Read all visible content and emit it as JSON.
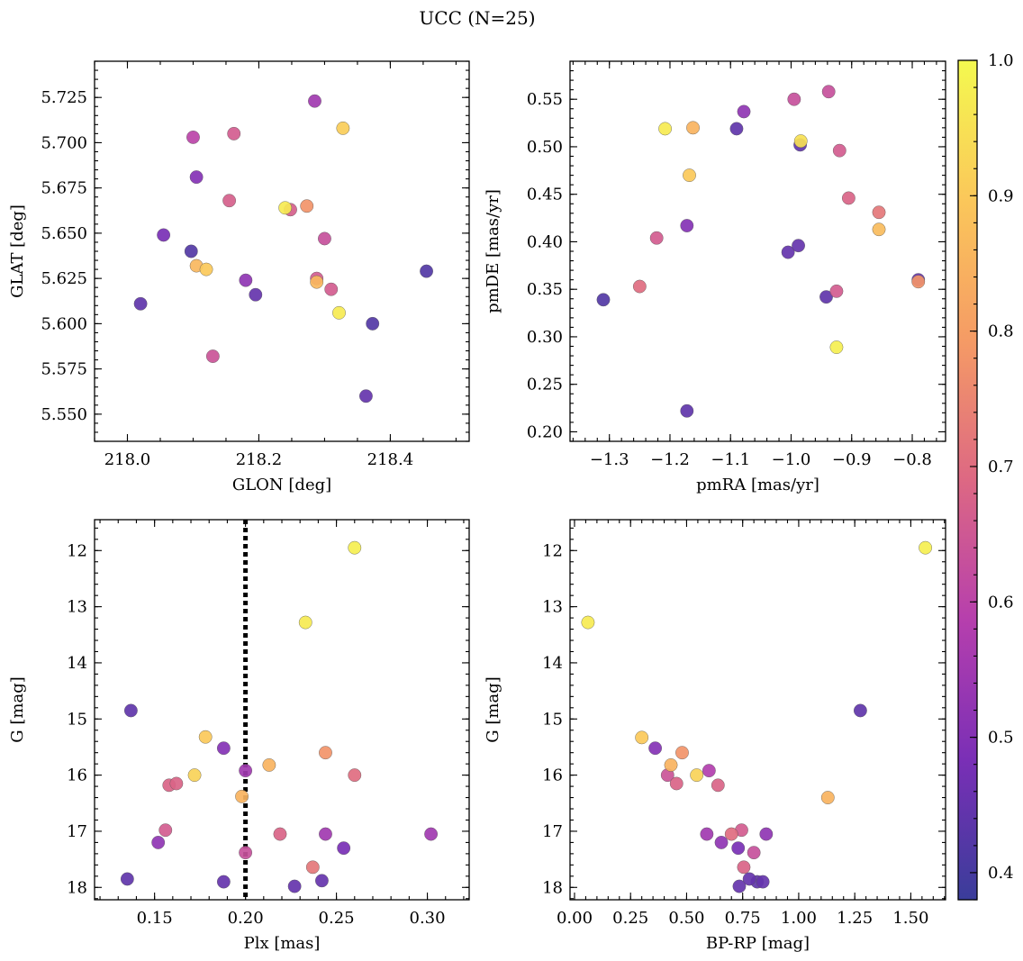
{
  "figure_title": "UCC (N=25)",
  "colorbar": {
    "min": 0.38,
    "max": 1.0,
    "ticks": [
      0.4,
      0.5,
      0.6,
      0.7,
      0.8,
      0.9,
      1.0
    ],
    "tick_labels": [
      "0.4",
      "0.5",
      "0.6",
      "0.7",
      "0.8",
      "0.9",
      "1.0"
    ],
    "colormap": "plasma",
    "colormap_stops": [
      "#3a3d9a",
      "#7a2fb6",
      "#b63fad",
      "#dd6883",
      "#f59b65",
      "#fbc75a",
      "#f4f94f"
    ]
  },
  "chart_data": [
    {
      "type": "scatter",
      "xlabel": "GLON [deg]",
      "ylabel": "GLAT [deg]",
      "xlim": [
        217.95,
        218.52
      ],
      "ylim": [
        5.535,
        5.745
      ],
      "xticks": [
        218.0,
        218.2,
        218.4
      ],
      "xtick_labels": [
        "218.0",
        "218.2",
        "218.4"
      ],
      "yticks": [
        5.55,
        5.575,
        5.6,
        5.625,
        5.65,
        5.675,
        5.7,
        5.725
      ],
      "ytick_labels": [
        "5.550",
        "5.575",
        "5.600",
        "5.625",
        "5.650",
        "5.675",
        "5.700",
        "5.725"
      ],
      "x_minor_step": 0.05,
      "y_minor_step": 0.005,
      "points": [
        {
          "x": 218.02,
          "y": 5.611,
          "c": 0.44
        },
        {
          "x": 218.055,
          "y": 5.649,
          "c": 0.48
        },
        {
          "x": 218.097,
          "y": 5.64,
          "c": 0.42
        },
        {
          "x": 218.1,
          "y": 5.703,
          "c": 0.6
        },
        {
          "x": 218.105,
          "y": 5.681,
          "c": 0.5
        },
        {
          "x": 218.105,
          "y": 5.632,
          "c": 0.86
        },
        {
          "x": 218.12,
          "y": 5.63,
          "c": 0.9
        },
        {
          "x": 218.13,
          "y": 5.582,
          "c": 0.64
        },
        {
          "x": 218.155,
          "y": 5.668,
          "c": 0.67
        },
        {
          "x": 218.162,
          "y": 5.705,
          "c": 0.66
        },
        {
          "x": 218.18,
          "y": 5.624,
          "c": 0.52
        },
        {
          "x": 218.195,
          "y": 5.616,
          "c": 0.45
        },
        {
          "x": 218.24,
          "y": 5.664,
          "c": 0.97
        },
        {
          "x": 218.248,
          "y": 5.663,
          "c": 0.67
        },
        {
          "x": 218.273,
          "y": 5.665,
          "c": 0.78
        },
        {
          "x": 218.285,
          "y": 5.723,
          "c": 0.55
        },
        {
          "x": 218.288,
          "y": 5.625,
          "c": 0.66
        },
        {
          "x": 218.288,
          "y": 5.623,
          "c": 0.86
        },
        {
          "x": 218.3,
          "y": 5.647,
          "c": 0.63
        },
        {
          "x": 218.31,
          "y": 5.619,
          "c": 0.66
        },
        {
          "x": 218.322,
          "y": 5.606,
          "c": 0.97
        },
        {
          "x": 218.328,
          "y": 5.708,
          "c": 0.91
        },
        {
          "x": 218.363,
          "y": 5.56,
          "c": 0.45
        },
        {
          "x": 218.373,
          "y": 5.6,
          "c": 0.42
        },
        {
          "x": 218.455,
          "y": 5.629,
          "c": 0.42
        }
      ]
    },
    {
      "type": "scatter",
      "xlabel": "pmRA [mas/yr]",
      "ylabel": "pmDE [mas/yr]",
      "xlim": [
        -1.365,
        -0.745
      ],
      "ylim": [
        0.19,
        0.59
      ],
      "xticks": [
        -1.3,
        -1.2,
        -1.1,
        -1.0,
        -0.9,
        -0.8
      ],
      "xtick_labels": [
        "−1.3",
        "−1.2",
        "−1.1",
        "−1.0",
        "−0.9",
        "−0.8"
      ],
      "yticks": [
        0.2,
        0.25,
        0.3,
        0.35,
        0.4,
        0.45,
        0.5,
        0.55
      ],
      "ytick_labels": [
        "0.20",
        "0.25",
        "0.30",
        "0.35",
        "0.40",
        "0.45",
        "0.50",
        "0.55"
      ],
      "x_minor_step": 0.02,
      "y_minor_step": 0.01,
      "points": [
        {
          "x": -1.31,
          "y": 0.339,
          "c": 0.42
        },
        {
          "x": -1.25,
          "y": 0.353,
          "c": 0.7
        },
        {
          "x": -1.222,
          "y": 0.404,
          "c": 0.66
        },
        {
          "x": -1.208,
          "y": 0.519,
          "c": 0.97
        },
        {
          "x": -1.172,
          "y": 0.417,
          "c": 0.5
        },
        {
          "x": -1.172,
          "y": 0.222,
          "c": 0.44
        },
        {
          "x": -1.168,
          "y": 0.47,
          "c": 0.9
        },
        {
          "x": -1.162,
          "y": 0.52,
          "c": 0.85
        },
        {
          "x": -1.09,
          "y": 0.519,
          "c": 0.44
        },
        {
          "x": -1.078,
          "y": 0.537,
          "c": 0.52
        },
        {
          "x": -1.005,
          "y": 0.389,
          "c": 0.45
        },
        {
          "x": -0.995,
          "y": 0.55,
          "c": 0.63
        },
        {
          "x": -0.988,
          "y": 0.396,
          "c": 0.45
        },
        {
          "x": -0.985,
          "y": 0.502,
          "c": 0.44
        },
        {
          "x": -0.984,
          "y": 0.506,
          "c": 0.95
        },
        {
          "x": -0.942,
          "y": 0.342,
          "c": 0.44
        },
        {
          "x": -0.938,
          "y": 0.558,
          "c": 0.63
        },
        {
          "x": -0.925,
          "y": 0.348,
          "c": 0.66
        },
        {
          "x": -0.925,
          "y": 0.289,
          "c": 0.98
        },
        {
          "x": -0.92,
          "y": 0.496,
          "c": 0.66
        },
        {
          "x": -0.905,
          "y": 0.446,
          "c": 0.68
        },
        {
          "x": -0.855,
          "y": 0.431,
          "c": 0.72
        },
        {
          "x": -0.855,
          "y": 0.413,
          "c": 0.87
        },
        {
          "x": -0.79,
          "y": 0.36,
          "c": 0.45
        },
        {
          "x": -0.79,
          "y": 0.358,
          "c": 0.78
        }
      ]
    },
    {
      "type": "scatter",
      "xlabel": "Plx [mas]",
      "ylabel": "G [mag]",
      "xlim": [
        0.117,
        0.323
      ],
      "ylim": [
        18.22,
        11.45
      ],
      "y_inverted": true,
      "xticks": [
        0.15,
        0.2,
        0.25,
        0.3
      ],
      "xtick_labels": [
        "0.15",
        "0.20",
        "0.25",
        "0.30"
      ],
      "yticks": [
        12,
        13,
        14,
        15,
        16,
        17,
        18
      ],
      "ytick_labels": [
        "12",
        "13",
        "14",
        "15",
        "16",
        "17",
        "18"
      ],
      "x_minor_step": 0.01,
      "y_minor_step": 0.2,
      "vline": {
        "x": 0.2,
        "style": "dotted",
        "color": "#000000"
      },
      "points": [
        {
          "x": 0.135,
          "y": 17.85,
          "c": 0.44
        },
        {
          "x": 0.137,
          "y": 14.85,
          "c": 0.44
        },
        {
          "x": 0.152,
          "y": 17.2,
          "c": 0.52
        },
        {
          "x": 0.156,
          "y": 16.98,
          "c": 0.66
        },
        {
          "x": 0.158,
          "y": 16.18,
          "c": 0.68
        },
        {
          "x": 0.162,
          "y": 16.15,
          "c": 0.68
        },
        {
          "x": 0.172,
          "y": 16.0,
          "c": 0.92
        },
        {
          "x": 0.178,
          "y": 15.32,
          "c": 0.9
        },
        {
          "x": 0.188,
          "y": 15.52,
          "c": 0.5
        },
        {
          "x": 0.188,
          "y": 17.9,
          "c": 0.45
        },
        {
          "x": 0.198,
          "y": 16.38,
          "c": 0.85
        },
        {
          "x": 0.2,
          "y": 15.92,
          "c": 0.55
        },
        {
          "x": 0.2,
          "y": 17.38,
          "c": 0.63
        },
        {
          "x": 0.213,
          "y": 15.82,
          "c": 0.85
        },
        {
          "x": 0.219,
          "y": 17.05,
          "c": 0.68
        },
        {
          "x": 0.227,
          "y": 17.98,
          "c": 0.45
        },
        {
          "x": 0.233,
          "y": 13.28,
          "c": 0.97
        },
        {
          "x": 0.237,
          "y": 17.64,
          "c": 0.72
        },
        {
          "x": 0.242,
          "y": 17.88,
          "c": 0.45
        },
        {
          "x": 0.244,
          "y": 15.6,
          "c": 0.78
        },
        {
          "x": 0.244,
          "y": 17.05,
          "c": 0.55
        },
        {
          "x": 0.254,
          "y": 17.3,
          "c": 0.48
        },
        {
          "x": 0.26,
          "y": 11.95,
          "c": 0.98
        },
        {
          "x": 0.26,
          "y": 16.0,
          "c": 0.7
        },
        {
          "x": 0.302,
          "y": 17.05,
          "c": 0.55
        }
      ]
    },
    {
      "type": "scatter",
      "xlabel": "BP-RP [mag]",
      "ylabel": "G [mag]",
      "xlim": [
        -0.02,
        1.655
      ],
      "ylim": [
        18.22,
        11.45
      ],
      "y_inverted": true,
      "xticks": [
        0.0,
        0.25,
        0.5,
        0.75,
        1.0,
        1.25,
        1.5
      ],
      "xtick_labels": [
        "0.00",
        "0.25",
        "0.50",
        "0.75",
        "1.00",
        "1.25",
        "1.50"
      ],
      "yticks": [
        12,
        13,
        14,
        15,
        16,
        17,
        18
      ],
      "ytick_labels": [
        "12",
        "13",
        "14",
        "15",
        "16",
        "17",
        "18"
      ],
      "x_minor_step": 0.05,
      "y_minor_step": 0.2,
      "points": [
        {
          "x": 0.06,
          "y": 13.28,
          "c": 0.97
        },
        {
          "x": 0.3,
          "y": 15.33,
          "c": 0.9
        },
        {
          "x": 0.36,
          "y": 15.52,
          "c": 0.5
        },
        {
          "x": 0.415,
          "y": 16.0,
          "c": 0.64
        },
        {
          "x": 0.43,
          "y": 15.82,
          "c": 0.85
        },
        {
          "x": 0.455,
          "y": 16.15,
          "c": 0.68
        },
        {
          "x": 0.48,
          "y": 15.6,
          "c": 0.78
        },
        {
          "x": 0.545,
          "y": 16.0,
          "c": 0.92
        },
        {
          "x": 0.59,
          "y": 17.05,
          "c": 0.55
        },
        {
          "x": 0.6,
          "y": 15.92,
          "c": 0.58
        },
        {
          "x": 0.64,
          "y": 16.18,
          "c": 0.68
        },
        {
          "x": 0.655,
          "y": 17.2,
          "c": 0.52
        },
        {
          "x": 0.7,
          "y": 17.05,
          "c": 0.7
        },
        {
          "x": 0.73,
          "y": 17.3,
          "c": 0.48
        },
        {
          "x": 0.735,
          "y": 17.98,
          "c": 0.45
        },
        {
          "x": 0.745,
          "y": 16.98,
          "c": 0.66
        },
        {
          "x": 0.755,
          "y": 17.64,
          "c": 0.68
        },
        {
          "x": 0.78,
          "y": 17.85,
          "c": 0.45
        },
        {
          "x": 0.8,
          "y": 17.38,
          "c": 0.63
        },
        {
          "x": 0.815,
          "y": 17.9,
          "c": 0.44
        },
        {
          "x": 0.84,
          "y": 17.9,
          "c": 0.45
        },
        {
          "x": 0.855,
          "y": 17.05,
          "c": 0.52
        },
        {
          "x": 1.13,
          "y": 16.4,
          "c": 0.85
        },
        {
          "x": 1.275,
          "y": 14.85,
          "c": 0.44
        },
        {
          "x": 1.565,
          "y": 11.95,
          "c": 0.98
        }
      ]
    }
  ]
}
